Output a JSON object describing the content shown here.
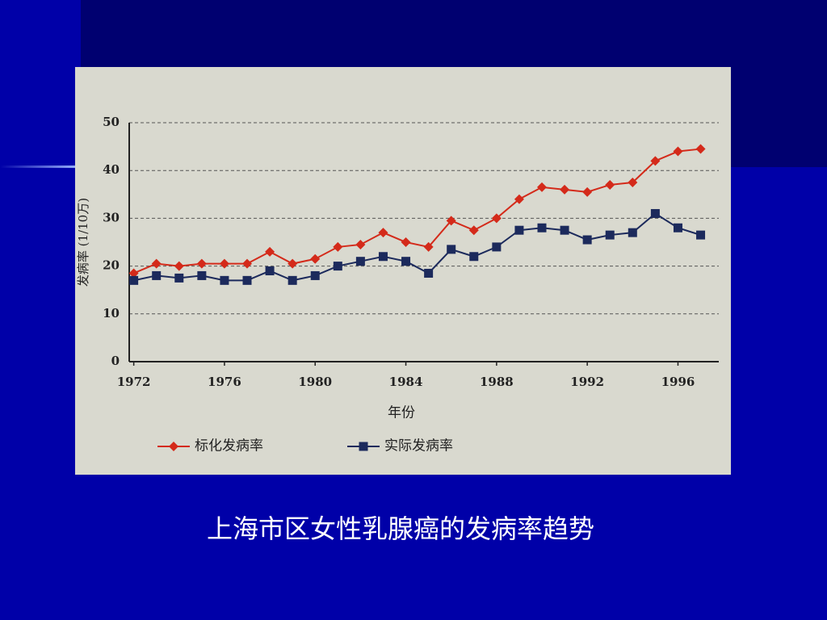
{
  "chart_data": {
    "type": "line",
    "caption": "上海市区女性乳腺癌的发病率趋势",
    "x_label": "年份",
    "y_label": "发病率 (1/10万)",
    "x": [
      1972,
      1973,
      1974,
      1975,
      1976,
      1977,
      1978,
      1979,
      1980,
      1981,
      1982,
      1983,
      1984,
      1985,
      1986,
      1987,
      1988,
      1989,
      1990,
      1991,
      1992,
      1993,
      1994,
      1995,
      1996,
      1997
    ],
    "series": [
      {
        "name": "标化发病率",
        "color": "#d42a1a",
        "marker": "diamond",
        "values": [
          18.5,
          20.5,
          20,
          20.5,
          20.5,
          20.5,
          23,
          20.5,
          21.5,
          24,
          24.5,
          27,
          25,
          24,
          29.5,
          27.5,
          30,
          34,
          36.5,
          36,
          35.5,
          37,
          37.5,
          42,
          44,
          44.5
        ]
      },
      {
        "name": "实际发病率",
        "color": "#1c2a5c",
        "marker": "square",
        "values": [
          17,
          18,
          17.5,
          18,
          17,
          17,
          19,
          17,
          18,
          20,
          21,
          22,
          21,
          18.5,
          23.5,
          22,
          24,
          27.5,
          28,
          27.5,
          25.5,
          26.5,
          27,
          31,
          28,
          26.5
        ]
      }
    ],
    "xlim": [
      1971.8,
      1997.8
    ],
    "xticks": [
      1972,
      1976,
      1980,
      1984,
      1988,
      1992,
      1996
    ],
    "ylim": [
      0,
      50
    ],
    "yticks": [
      0,
      10,
      20,
      30,
      40,
      50
    ],
    "grid": true
  }
}
